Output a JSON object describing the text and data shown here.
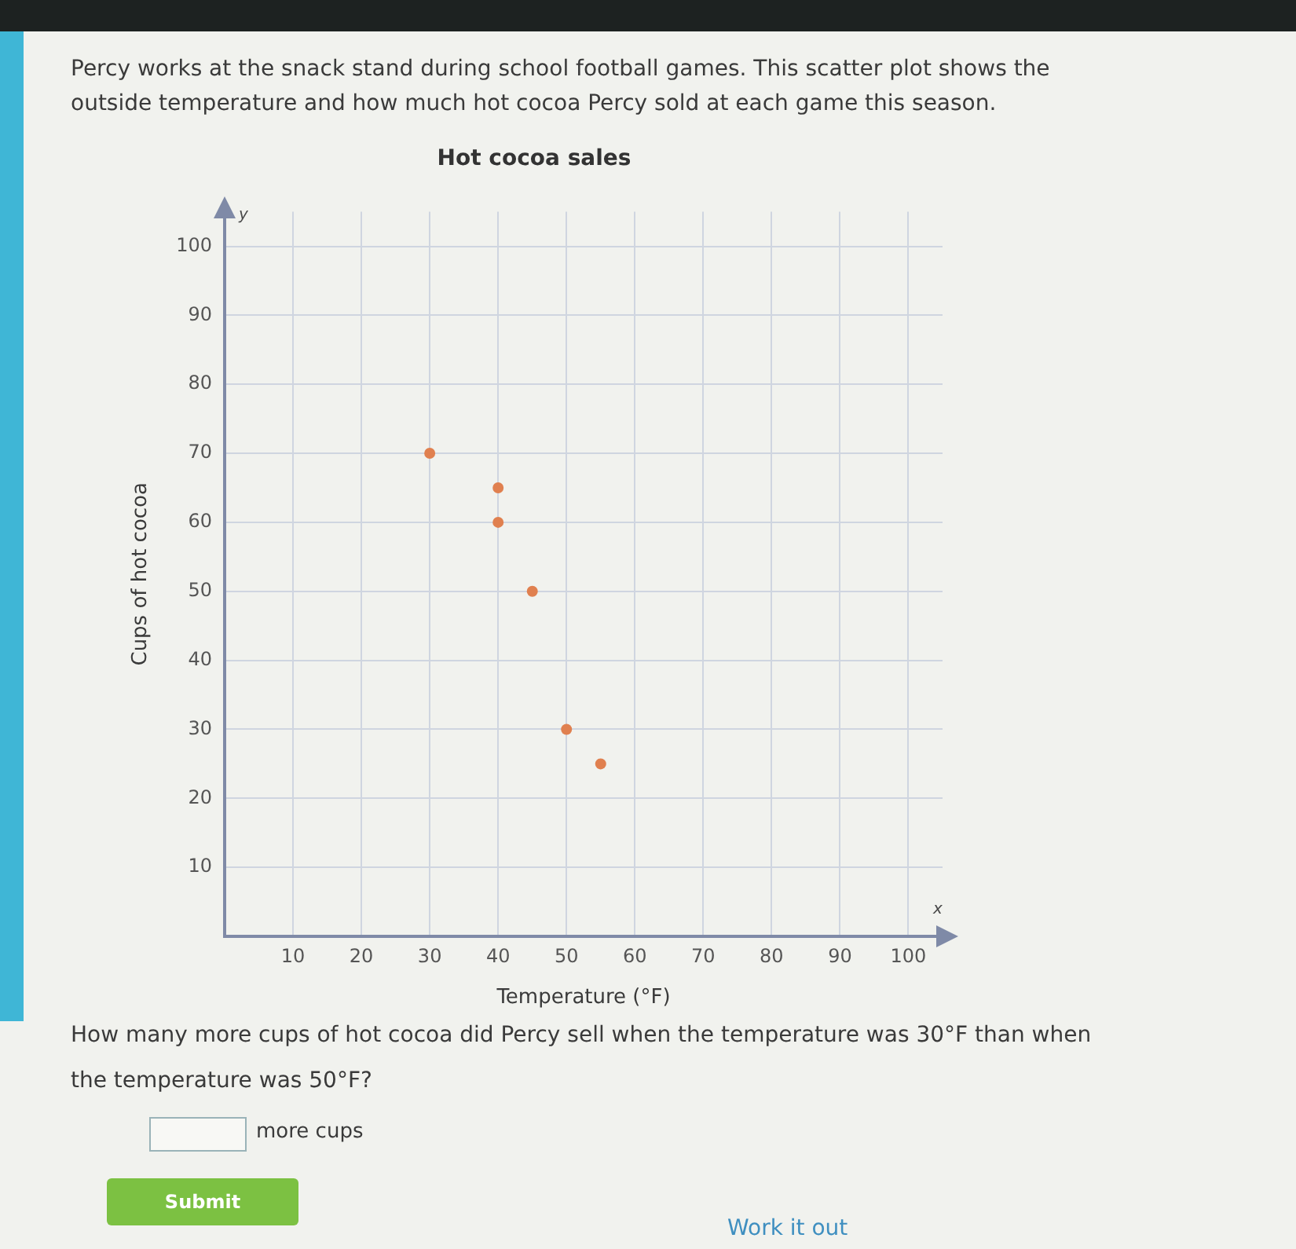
{
  "chart_data": {
    "type": "scatter",
    "title": "Hot cocoa sales",
    "xlabel": "Temperature (°F)",
    "ylabel": "Cups of hot cocoa",
    "x": [
      30,
      40,
      40,
      45,
      50,
      55
    ],
    "values": [
      70,
      65,
      60,
      50,
      30,
      25
    ],
    "color": "#e0804f",
    "xlim": [
      0,
      105
    ],
    "ylim": [
      0,
      105
    ],
    "xticks": [
      10,
      20,
      30,
      40,
      50,
      60,
      70,
      80,
      90,
      100
    ],
    "yticks": [
      10,
      20,
      30,
      40,
      50,
      60,
      70,
      80,
      90,
      100
    ],
    "grid": true,
    "marker": "circle",
    "annotations": [
      "Percy works at the snack stand during school football games. This scatter plot shows the outside temperature and how much hot cocoa Percy sold at each game this season.",
      "y",
      "x",
      "How many more cups of hot cocoa did Percy sell when the temperature was 30°F than when the temperature was 50°F?",
      "more cups",
      "Submit",
      "Work it out"
    ]
  }
}
